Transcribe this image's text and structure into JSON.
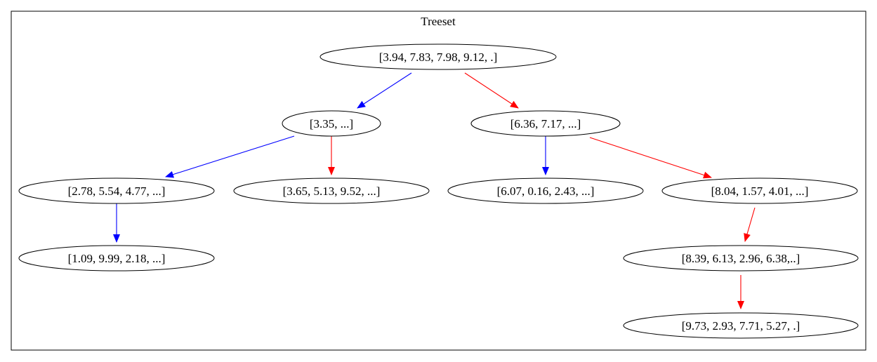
{
  "cluster": {
    "title": "Treeset"
  },
  "colors": {
    "left_edge": "#0000ff",
    "right_edge": "#ff0000",
    "node_stroke": "#000000"
  },
  "nodes": [
    {
      "id": "n0",
      "label": "[3.94, 7.83, 7.98, 9.12, .]"
    },
    {
      "id": "n1",
      "label": "[3.35, ...]"
    },
    {
      "id": "n2",
      "label": "[6.36, 7.17, ...]"
    },
    {
      "id": "n3",
      "label": "[2.78, 5.54, 4.77, ...]"
    },
    {
      "id": "n4",
      "label": "[3.65, 5.13, 9.52, ...]"
    },
    {
      "id": "n5",
      "label": "[6.07, 0.16, 2.43, ...]"
    },
    {
      "id": "n6",
      "label": "[8.04, 1.57, 4.01, ...]"
    },
    {
      "id": "n7",
      "label": "[1.09, 9.99, 2.18, ...]"
    },
    {
      "id": "n8",
      "label": "[8.39, 6.13, 2.96, 6.38,..]"
    },
    {
      "id": "n9",
      "label": "[9.73, 2.93, 7.71, 5.27, .]"
    }
  ],
  "edges": [
    {
      "from": "n0",
      "to": "n1",
      "color": "blue"
    },
    {
      "from": "n0",
      "to": "n2",
      "color": "red"
    },
    {
      "from": "n1",
      "to": "n3",
      "color": "blue"
    },
    {
      "from": "n1",
      "to": "n4",
      "color": "red"
    },
    {
      "from": "n2",
      "to": "n5",
      "color": "blue"
    },
    {
      "from": "n2",
      "to": "n6",
      "color": "red"
    },
    {
      "from": "n3",
      "to": "n7",
      "color": "blue"
    },
    {
      "from": "n6",
      "to": "n8",
      "color": "red"
    },
    {
      "from": "n8",
      "to": "n9",
      "color": "red"
    }
  ]
}
